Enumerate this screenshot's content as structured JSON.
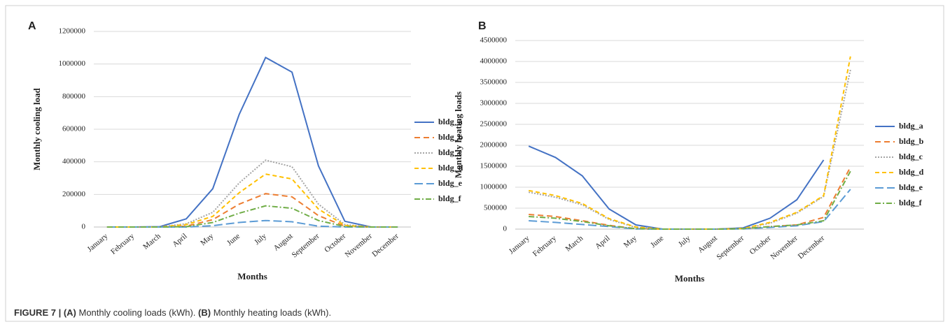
{
  "chart_data": [
    {
      "type": "line",
      "panel": "A",
      "y_label": "Monthly cooling load",
      "x_label": "Months",
      "categories": [
        "January",
        "February",
        "March",
        "April",
        "May",
        "June",
        "July",
        "August",
        "September",
        "October",
        "November",
        "December"
      ],
      "ylim": [
        0,
        1200000
      ],
      "yticks": [
        0,
        200000,
        400000,
        600000,
        800000,
        1000000,
        1200000
      ],
      "grid": true,
      "series": [
        {
          "name": "bldg_a",
          "color": "#4472c4",
          "values": [
            0,
            0,
            2000,
            50000,
            235000,
            690000,
            1040000,
            950000,
            375000,
            35000,
            0,
            0
          ]
        },
        {
          "name": "bldg_b",
          "color": "#ed7d31",
          "values": [
            0,
            0,
            0,
            5000,
            45000,
            140000,
            205000,
            185000,
            70000,
            5000,
            0,
            0
          ]
        },
        {
          "name": "bldg_c",
          "color": "#a5a5a5",
          "values": [
            0,
            0,
            1000,
            20000,
            90000,
            270000,
            410000,
            370000,
            140000,
            15000,
            0,
            0
          ]
        },
        {
          "name": "bldg_d",
          "color": "#ffc000",
          "values": [
            0,
            0,
            0,
            15000,
            65000,
            210000,
            325000,
            295000,
            110000,
            10000,
            0,
            0
          ]
        },
        {
          "name": "bldg_e",
          "color": "#5b9bd5",
          "values": [
            0,
            0,
            0,
            0,
            8000,
            28000,
            40000,
            32000,
            5000,
            0,
            0,
            0
          ]
        },
        {
          "name": "bldg_f",
          "color": "#70ad47",
          "values": [
            0,
            0,
            0,
            2000,
            28000,
            85000,
            130000,
            115000,
            40000,
            3000,
            0,
            0
          ]
        }
      ]
    },
    {
      "type": "line",
      "panel": "B",
      "y_label": "Monthly heating loads",
      "x_label": "Months",
      "categories": [
        "January",
        "February",
        "March",
        "April",
        "May",
        "June",
        "July",
        "August",
        "September",
        "October",
        "November",
        "December",
        null
      ],
      "ylim": [
        0,
        4500000
      ],
      "yticks": [
        0,
        500000,
        1000000,
        1500000,
        2000000,
        2500000,
        3000000,
        3500000,
        4000000,
        4500000
      ],
      "grid": true,
      "series": [
        {
          "name": "bldg_a",
          "color": "#4472c4",
          "values": [
            1980000,
            1710000,
            1270000,
            480000,
            100000,
            0,
            0,
            0,
            30000,
            260000,
            700000,
            1650000,
            null
          ]
        },
        {
          "name": "bldg_b",
          "color": "#ed7d31",
          "values": [
            350000,
            300000,
            200000,
            90000,
            10000,
            0,
            0,
            0,
            10000,
            60000,
            100000,
            280000,
            1480000
          ]
        },
        {
          "name": "bldg_c",
          "color": "#a5a5a5",
          "values": [
            880000,
            760000,
            580000,
            230000,
            40000,
            0,
            0,
            0,
            10000,
            140000,
            380000,
            780000,
            3800000
          ]
        },
        {
          "name": "bldg_d",
          "color": "#ffc000",
          "values": [
            920000,
            800000,
            610000,
            250000,
            50000,
            0,
            0,
            0,
            15000,
            160000,
            400000,
            800000,
            4120000
          ]
        },
        {
          "name": "bldg_e",
          "color": "#5b9bd5",
          "values": [
            200000,
            160000,
            110000,
            60000,
            5000,
            0,
            0,
            0,
            5000,
            40000,
            80000,
            180000,
            950000
          ]
        },
        {
          "name": "bldg_f",
          "color": "#70ad47",
          "values": [
            300000,
            260000,
            180000,
            80000,
            10000,
            0,
            0,
            0,
            10000,
            60000,
            100000,
            200000,
            1380000
          ]
        }
      ]
    }
  ],
  "caption": {
    "figure_label": "FIGURE 7 |",
    "a_label": "(A)",
    "a_text": "Monthly cooling loads (kWh).",
    "b_label": "(B)",
    "b_text": "Monthly heating loads (kWh)."
  }
}
